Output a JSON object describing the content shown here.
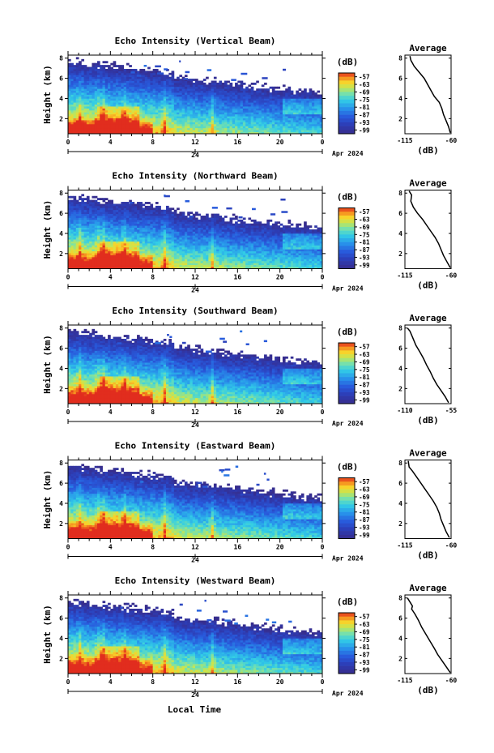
{
  "chart_data": [
    {
      "type": "heatmap",
      "title": "Echo Intensity (Vertical Beam)",
      "ylabel": "Height (km)",
      "yticks": [
        "2",
        "4",
        "6",
        "8"
      ],
      "ylim": [
        0.5,
        8.3
      ],
      "xticks": [
        "0",
        "4",
        "8",
        "12",
        "16",
        "20",
        "0"
      ],
      "xlim": [
        0,
        24
      ],
      "date_tick": "24",
      "date_label": "Apr 2024",
      "colorbar_label": "(dB)",
      "colorbar_ticks": [
        "-57",
        "-63",
        "-69",
        "-75",
        "-81",
        "-87",
        "-93",
        "-99"
      ],
      "clim": [
        -102,
        -54
      ],
      "profile": {
        "title": "Average",
        "xlabel": "(dB)",
        "xticks": [
          "-115",
          "-60"
        ],
        "xlim": [
          -115,
          -60
        ],
        "yticks": [
          "2",
          "4",
          "6",
          "8"
        ],
        "height_km": [
          8.2,
          7.8,
          7.2,
          6.6,
          6.0,
          5.4,
          4.8,
          4.2,
          3.6,
          3.0,
          2.4,
          1.8,
          1.2,
          0.6
        ],
        "db": [
          -109,
          -108,
          -104,
          -98,
          -92,
          -88,
          -84,
          -80,
          -74,
          -71,
          -69,
          -66,
          -63,
          -61
        ]
      }
    },
    {
      "type": "heatmap",
      "title": "Echo Intensity (Northward Beam)",
      "ylabel": "Height (km)",
      "yticks": [
        "2",
        "4",
        "6",
        "8"
      ],
      "ylim": [
        0.5,
        8.3
      ],
      "xticks": [
        "0",
        "4",
        "8",
        "12",
        "16",
        "20",
        "0"
      ],
      "xlim": [
        0,
        24
      ],
      "date_tick": "24",
      "date_label": "Apr 2024",
      "colorbar_label": "(dB)",
      "colorbar_ticks": [
        "-57",
        "-63",
        "-69",
        "-75",
        "-81",
        "-87",
        "-93",
        "-99"
      ],
      "clim": [
        -102,
        -54
      ],
      "profile": {
        "title": "Average",
        "xlabel": "(dB)",
        "xticks": [
          "-115",
          "-60"
        ],
        "xlim": [
          -115,
          -60
        ],
        "yticks": [
          "2",
          "4",
          "6",
          "8"
        ],
        "height_km": [
          8.2,
          7.8,
          7.2,
          6.6,
          6.0,
          5.4,
          4.8,
          4.2,
          3.6,
          3.0,
          2.4,
          1.8,
          1.2,
          0.6
        ],
        "db": [
          -110,
          -107,
          -108,
          -105,
          -100,
          -94,
          -89,
          -84,
          -79,
          -75,
          -72,
          -69,
          -65,
          -61
        ]
      }
    },
    {
      "type": "heatmap",
      "title": "Echo Intensity (Southward Beam)",
      "ylabel": "Height (km)",
      "yticks": [
        "2",
        "4",
        "6",
        "8"
      ],
      "ylim": [
        0.5,
        8.3
      ],
      "xticks": [
        "0",
        "4",
        "8",
        "12",
        "16",
        "20",
        "0"
      ],
      "xlim": [
        0,
        24
      ],
      "date_tick": "24",
      "date_label": "Apr 2024",
      "colorbar_label": "(dB)",
      "colorbar_ticks": [
        "-57",
        "-63",
        "-69",
        "-75",
        "-81",
        "-87",
        "-93",
        "-99"
      ],
      "clim": [
        -102,
        -54
      ],
      "profile": {
        "title": "Average",
        "xlabel": "(dB)",
        "xticks": [
          "-110",
          "-55"
        ],
        "xlim": [
          -110,
          -55
        ],
        "yticks": [
          "2",
          "4",
          "6",
          "8"
        ],
        "height_km": [
          8.0,
          7.7,
          7.3,
          6.9,
          6.3,
          5.6,
          5.0,
          4.3,
          3.7,
          3.0,
          2.4,
          1.8,
          1.2,
          0.6
        ],
        "db": [
          -107,
          -104,
          -102,
          -100,
          -97,
          -92,
          -88,
          -84,
          -80,
          -76,
          -72,
          -67,
          -62,
          -58
        ]
      }
    },
    {
      "type": "heatmap",
      "title": "Echo Intensity (Eastward Beam)",
      "ylabel": "Height (km)",
      "yticks": [
        "2",
        "4",
        "6",
        "8"
      ],
      "ylim": [
        0.5,
        8.3
      ],
      "xticks": [
        "0",
        "4",
        "8",
        "12",
        "16",
        "20",
        "0"
      ],
      "xlim": [
        0,
        24
      ],
      "date_tick": "24",
      "date_label": "Apr 2024",
      "colorbar_label": "(dB)",
      "colorbar_ticks": [
        "-57",
        "-63",
        "-69",
        "-75",
        "-81",
        "-87",
        "-93",
        "-99"
      ],
      "clim": [
        -102,
        -54
      ],
      "profile": {
        "title": "Average",
        "xlabel": "(dB)",
        "xticks": [
          "-115",
          "-60"
        ],
        "xlim": [
          -115,
          -60
        ],
        "yticks": [
          "2",
          "4",
          "6",
          "8"
        ],
        "height_km": [
          8.2,
          7.6,
          7.2,
          6.6,
          6.0,
          5.4,
          4.8,
          4.2,
          3.6,
          3.0,
          2.4,
          1.8,
          1.2,
          0.6
        ],
        "db": [
          -111,
          -110,
          -106,
          -101,
          -96,
          -91,
          -86,
          -81,
          -77,
          -74,
          -72,
          -69,
          -66,
          -62
        ]
      }
    },
    {
      "type": "heatmap",
      "title": "Echo Intensity (Westward Beam)",
      "ylabel": "Height (km)",
      "yticks": [
        "2",
        "4",
        "6",
        "8"
      ],
      "ylim": [
        0.5,
        8.3
      ],
      "xticks": [
        "0",
        "4",
        "8",
        "12",
        "16",
        "20",
        "0"
      ],
      "xlim": [
        0,
        24
      ],
      "date_tick": "24",
      "date_label": "Apr 2024",
      "colorbar_label": "(dB)",
      "colorbar_ticks": [
        "-57",
        "-63",
        "-69",
        "-75",
        "-81",
        "-87",
        "-93",
        "-99"
      ],
      "clim": [
        -102,
        -54
      ],
      "profile": {
        "title": "Average",
        "xlabel": "(dB)",
        "xticks": [
          "-115",
          "-60"
        ],
        "xlim": [
          -115,
          -60
        ],
        "yticks": [
          "2",
          "4",
          "6",
          "8"
        ],
        "height_km": [
          8.0,
          7.6,
          7.2,
          6.9,
          6.4,
          5.8,
          5.1,
          4.4,
          3.7,
          3.0,
          2.4,
          1.8,
          1.2,
          0.6
        ],
        "db": [
          -112,
          -109,
          -106,
          -107,
          -103,
          -99,
          -95,
          -90,
          -85,
          -80,
          -76,
          -71,
          -66,
          -61
        ]
      }
    }
  ],
  "xlabel": "Local Time"
}
